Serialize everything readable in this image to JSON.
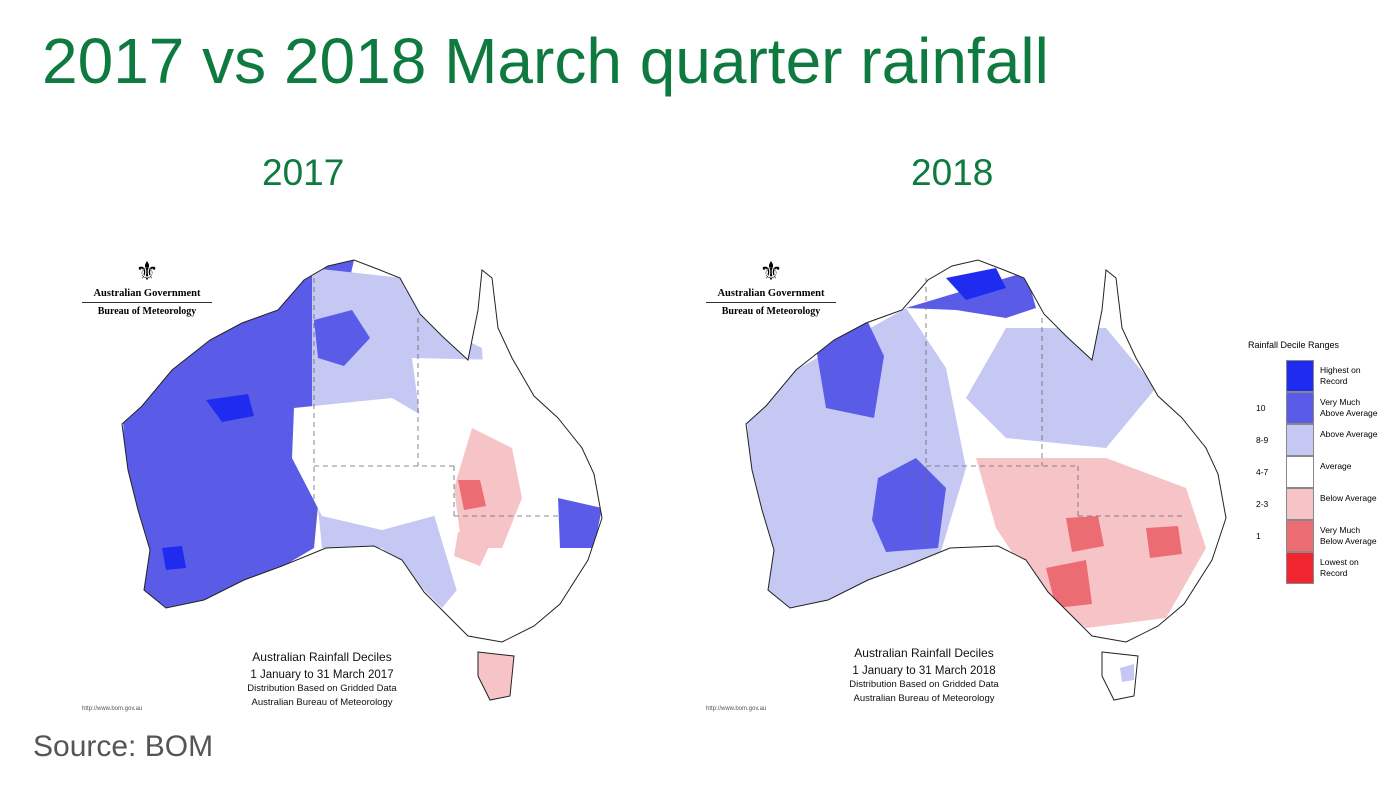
{
  "title": "2017 vs 2018 March quarter rainfall",
  "source": "Source: BOM",
  "colors": {
    "title": "#0e7a3f",
    "highest": "#1f2cf0",
    "very_much_above": "#5a5ce8",
    "above": "#c6c8f4",
    "average": "#ffffff",
    "below": "#f6c3c6",
    "very_much_below": "#ec6c74",
    "lowest": "#f22630"
  },
  "maps": [
    {
      "year": "2017",
      "gov_name": "Australian Government",
      "gov_dept": "Bureau of Meteorology",
      "caption_title": "Australian Rainfall Deciles",
      "caption_period": "1 January to 31 March 2017",
      "caption_note1": "Distribution Based on Gridded Data",
      "caption_note2": "Australian Bureau of Meteorology",
      "url": "http://www.bom.gov.au"
    },
    {
      "year": "2018",
      "gov_name": "Australian Government",
      "gov_dept": "Bureau of Meteorology",
      "caption_title": "Australian Rainfall Deciles",
      "caption_period": "1 January to 31 March 2018",
      "caption_note1": "Distribution Based on Gridded Data",
      "caption_note2": "Australian Bureau of Meteorology",
      "url": "http://www.bom.gov.au"
    }
  ],
  "legend": {
    "title": "Rainfall Decile Ranges",
    "rows": [
      {
        "range": "",
        "line1": "Highest on",
        "line2": "Record",
        "color": "#1f2cf0"
      },
      {
        "range": "10",
        "line1": "Very Much",
        "line2": "Above Average",
        "color": "#5a5ce8"
      },
      {
        "range": "8-9",
        "line1": "Above Average",
        "line2": "",
        "color": "#c6c8f4"
      },
      {
        "range": "4-7",
        "line1": "Average",
        "line2": "",
        "color": "#ffffff"
      },
      {
        "range": "2-3",
        "line1": "Below Average",
        "line2": "",
        "color": "#f6c3c6"
      },
      {
        "range": "1",
        "line1": "Very Much",
        "line2": "Below Average",
        "color": "#ec6c74"
      },
      {
        "range": "",
        "line1": "Lowest on",
        "line2": "Record",
        "color": "#f22630"
      }
    ]
  }
}
